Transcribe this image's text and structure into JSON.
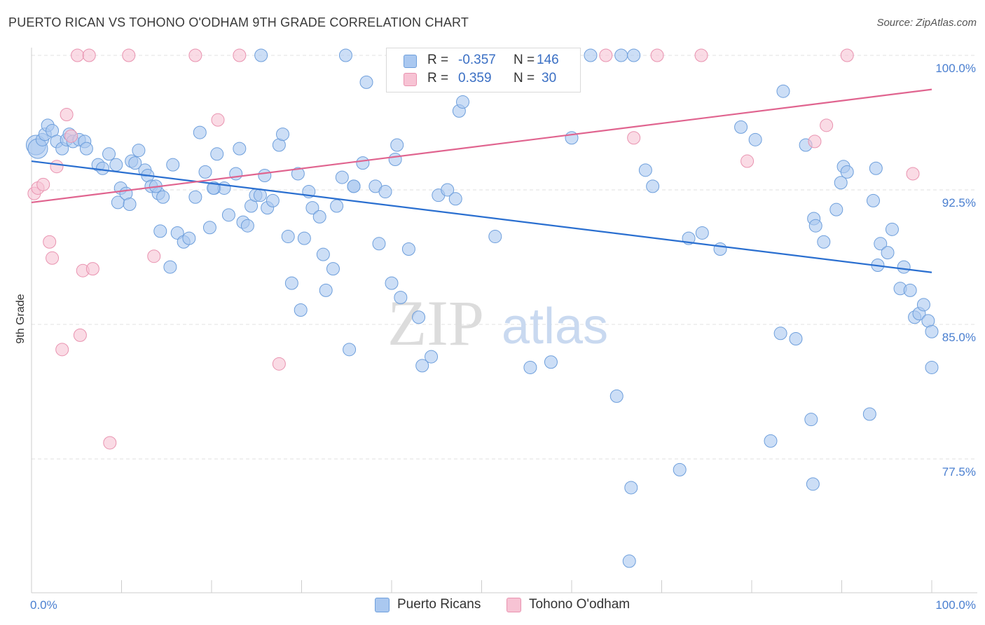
{
  "title": "PUERTO RICAN VS TOHONO O'ODHAM 9TH GRADE CORRELATION CHART",
  "source": "Source: ZipAtlas.com",
  "watermark": {
    "zip": "ZIP",
    "atlas": "atlas"
  },
  "legend": {
    "r_label": "R =",
    "n_label": "N =",
    "series": [
      {
        "name": "Puerto Ricans",
        "r": "-0.357",
        "n": "146",
        "fill": "#aac8f0",
        "stroke": "#6e9fdc"
      },
      {
        "name": "Tohono O'odham",
        "r": "0.359",
        "n": "30",
        "fill": "#f7c3d4",
        "stroke": "#e993b0"
      }
    ]
  },
  "colors": {
    "blue_line": "#2a6fd0",
    "pink_line": "#e0648f",
    "tick_text": "#4a7fd0",
    "grid": "#e2e2e2",
    "axis": "#cccccc"
  },
  "chart_data": {
    "type": "scatter",
    "title": "PUERTO RICAN VS TOHONO O'ODHAM 9TH GRADE CORRELATION CHART",
    "xlabel": "",
    "ylabel": "9th Grade",
    "xlim": [
      0,
      100
    ],
    "ylim": [
      70.5,
      101
    ],
    "x_tick_labels": [
      "0.0%",
      "100.0%"
    ],
    "y_ticks": [
      {
        "value": 100.0,
        "label": "100.0%"
      },
      {
        "value": 92.5,
        "label": "92.5%"
      },
      {
        "value": 85.0,
        "label": "85.0%"
      },
      {
        "value": 77.5,
        "label": "77.5%"
      }
    ],
    "series": [
      {
        "name": "Puerto Ricans",
        "trend": {
          "x": [
            0,
            100
          ],
          "y": [
            94.1,
            87.9
          ]
        },
        "points": [
          [
            0.5,
            95.0
          ],
          [
            0.7,
            94.8
          ],
          [
            1.2,
            95.3
          ],
          [
            1.5,
            95.6
          ],
          [
            1.8,
            96.1
          ],
          [
            2.3,
            95.8
          ],
          [
            2.8,
            95.2
          ],
          [
            3.4,
            94.8
          ],
          [
            3.9,
            95.3
          ],
          [
            4.2,
            95.6
          ],
          [
            4.6,
            95.2
          ],
          [
            5.3,
            95.3
          ],
          [
            5.9,
            95.2
          ],
          [
            6.1,
            94.8
          ],
          [
            7.4,
            93.9
          ],
          [
            7.9,
            93.7
          ],
          [
            8.6,
            94.5
          ],
          [
            9.4,
            93.9
          ],
          [
            9.6,
            91.8
          ],
          [
            9.9,
            92.6
          ],
          [
            10.5,
            92.3
          ],
          [
            10.9,
            91.7
          ],
          [
            11.1,
            94.1
          ],
          [
            11.9,
            94.7
          ],
          [
            12.6,
            93.6
          ],
          [
            12.9,
            93.3
          ],
          [
            13.3,
            92.7
          ],
          [
            14.1,
            92.3
          ],
          [
            14.6,
            92.1
          ],
          [
            14.3,
            90.2
          ],
          [
            15.4,
            88.2
          ],
          [
            15.7,
            93.9
          ],
          [
            16.2,
            90.1
          ],
          [
            16.9,
            89.6
          ],
          [
            17.5,
            89.8
          ],
          [
            18.2,
            92.1
          ],
          [
            18.7,
            95.7
          ],
          [
            19.3,
            93.5
          ],
          [
            19.8,
            90.4
          ],
          [
            20.3,
            92.6
          ],
          [
            20.6,
            94.5
          ],
          [
            21.4,
            92.6
          ],
          [
            21.9,
            91.1
          ],
          [
            22.7,
            93.4
          ],
          [
            23.1,
            94.8
          ],
          [
            23.5,
            90.7
          ],
          [
            24.0,
            90.5
          ],
          [
            24.4,
            91.6
          ],
          [
            24.9,
            92.2
          ],
          [
            25.4,
            92.2
          ],
          [
            25.9,
            93.3
          ],
          [
            26.2,
            91.5
          ],
          [
            26.8,
            91.9
          ],
          [
            27.5,
            95.0
          ],
          [
            27.9,
            95.6
          ],
          [
            28.5,
            89.9
          ],
          [
            28.9,
            87.3
          ],
          [
            29.6,
            93.4
          ],
          [
            29.9,
            85.8
          ],
          [
            30.3,
            89.8
          ],
          [
            30.8,
            92.4
          ],
          [
            31.2,
            91.5
          ],
          [
            32.0,
            91.0
          ],
          [
            32.4,
            88.9
          ],
          [
            32.7,
            86.9
          ],
          [
            33.5,
            88.1
          ],
          [
            33.9,
            91.6
          ],
          [
            34.5,
            93.2
          ],
          [
            34.9,
            100.0
          ],
          [
            35.3,
            83.6
          ],
          [
            35.8,
            92.7
          ],
          [
            36.8,
            94.0
          ],
          [
            37.2,
            98.5
          ],
          [
            38.2,
            92.7
          ],
          [
            38.6,
            89.5
          ],
          [
            39.3,
            92.4
          ],
          [
            40.0,
            87.3
          ],
          [
            40.4,
            94.2
          ],
          [
            40.6,
            95.0
          ],
          [
            41.0,
            86.5
          ],
          [
            41.9,
            89.2
          ],
          [
            43.0,
            85.4
          ],
          [
            43.4,
            82.7
          ],
          [
            44.4,
            83.2
          ],
          [
            45.2,
            92.2
          ],
          [
            46.2,
            92.5
          ],
          [
            47.1,
            92.0
          ],
          [
            47.5,
            96.9
          ],
          [
            47.9,
            97.4
          ],
          [
            48.2,
            100.0
          ],
          [
            51.5,
            89.9
          ],
          [
            53.6,
            100.0
          ],
          [
            55.4,
            82.6
          ],
          [
            57.7,
            82.9
          ],
          [
            57.9,
            100.0
          ],
          [
            60.0,
            95.4
          ],
          [
            62.1,
            100.0
          ],
          [
            65.0,
            81.0
          ],
          [
            65.5,
            100.0
          ],
          [
            66.4,
            71.8
          ],
          [
            66.6,
            75.9
          ],
          [
            66.9,
            100.0
          ],
          [
            68.2,
            93.6
          ],
          [
            69.0,
            92.7
          ],
          [
            72.0,
            76.9
          ],
          [
            73.0,
            89.8
          ],
          [
            74.5,
            90.1
          ],
          [
            76.5,
            89.2
          ],
          [
            78.8,
            96.0
          ],
          [
            80.4,
            95.3
          ],
          [
            82.1,
            78.5
          ],
          [
            83.2,
            84.5
          ],
          [
            83.5,
            98.0
          ],
          [
            84.9,
            84.2
          ],
          [
            86.0,
            95.0
          ],
          [
            86.6,
            79.7
          ],
          [
            86.8,
            76.1
          ],
          [
            86.9,
            90.9
          ],
          [
            87.1,
            90.5
          ],
          [
            88.0,
            89.6
          ],
          [
            89.4,
            91.4
          ],
          [
            89.9,
            92.9
          ],
          [
            90.2,
            93.8
          ],
          [
            90.6,
            93.5
          ],
          [
            93.1,
            80.0
          ],
          [
            93.5,
            91.9
          ],
          [
            93.8,
            93.7
          ],
          [
            94.3,
            89.5
          ],
          [
            95.1,
            89.0
          ],
          [
            95.6,
            90.3
          ],
          [
            96.5,
            87.0
          ],
          [
            96.9,
            88.2
          ],
          [
            97.6,
            86.9
          ],
          [
            98.1,
            85.4
          ],
          [
            98.6,
            85.6
          ],
          [
            99.1,
            86.1
          ],
          [
            99.6,
            85.2
          ],
          [
            100.0,
            84.6
          ],
          [
            100.0,
            82.6
          ],
          [
            94.0,
            88.3
          ],
          [
            35.8,
            92.7
          ],
          [
            20.2,
            92.6
          ],
          [
            13.8,
            92.7
          ],
          [
            56.7,
            100.0
          ],
          [
            11.5,
            94.0
          ],
          [
            25.5,
            100.0
          ]
        ]
      },
      {
        "name": "Tohono O'odham",
        "trend": {
          "x": [
            0,
            100
          ],
          "y": [
            91.8,
            98.1
          ]
        },
        "points": [
          [
            0.3,
            92.3
          ],
          [
            0.7,
            92.6
          ],
          [
            1.3,
            92.8
          ],
          [
            2.0,
            89.6
          ],
          [
            2.3,
            88.7
          ],
          [
            2.8,
            93.8
          ],
          [
            3.4,
            83.6
          ],
          [
            3.9,
            96.7
          ],
          [
            4.4,
            95.5
          ],
          [
            5.1,
            100.0
          ],
          [
            5.4,
            84.4
          ],
          [
            5.7,
            88.0
          ],
          [
            6.4,
            100.0
          ],
          [
            6.8,
            88.1
          ],
          [
            8.7,
            78.4
          ],
          [
            10.8,
            100.0
          ],
          [
            13.6,
            88.8
          ],
          [
            18.2,
            100.0
          ],
          [
            20.7,
            96.4
          ],
          [
            23.1,
            100.0
          ],
          [
            27.5,
            82.8
          ],
          [
            66.9,
            95.4
          ],
          [
            69.5,
            100.0
          ],
          [
            74.4,
            100.0
          ],
          [
            79.5,
            94.1
          ],
          [
            87.0,
            95.2
          ],
          [
            88.3,
            96.1
          ],
          [
            90.6,
            100.0
          ],
          [
            97.9,
            93.4
          ],
          [
            63.8,
            100.0
          ]
        ]
      }
    ]
  }
}
